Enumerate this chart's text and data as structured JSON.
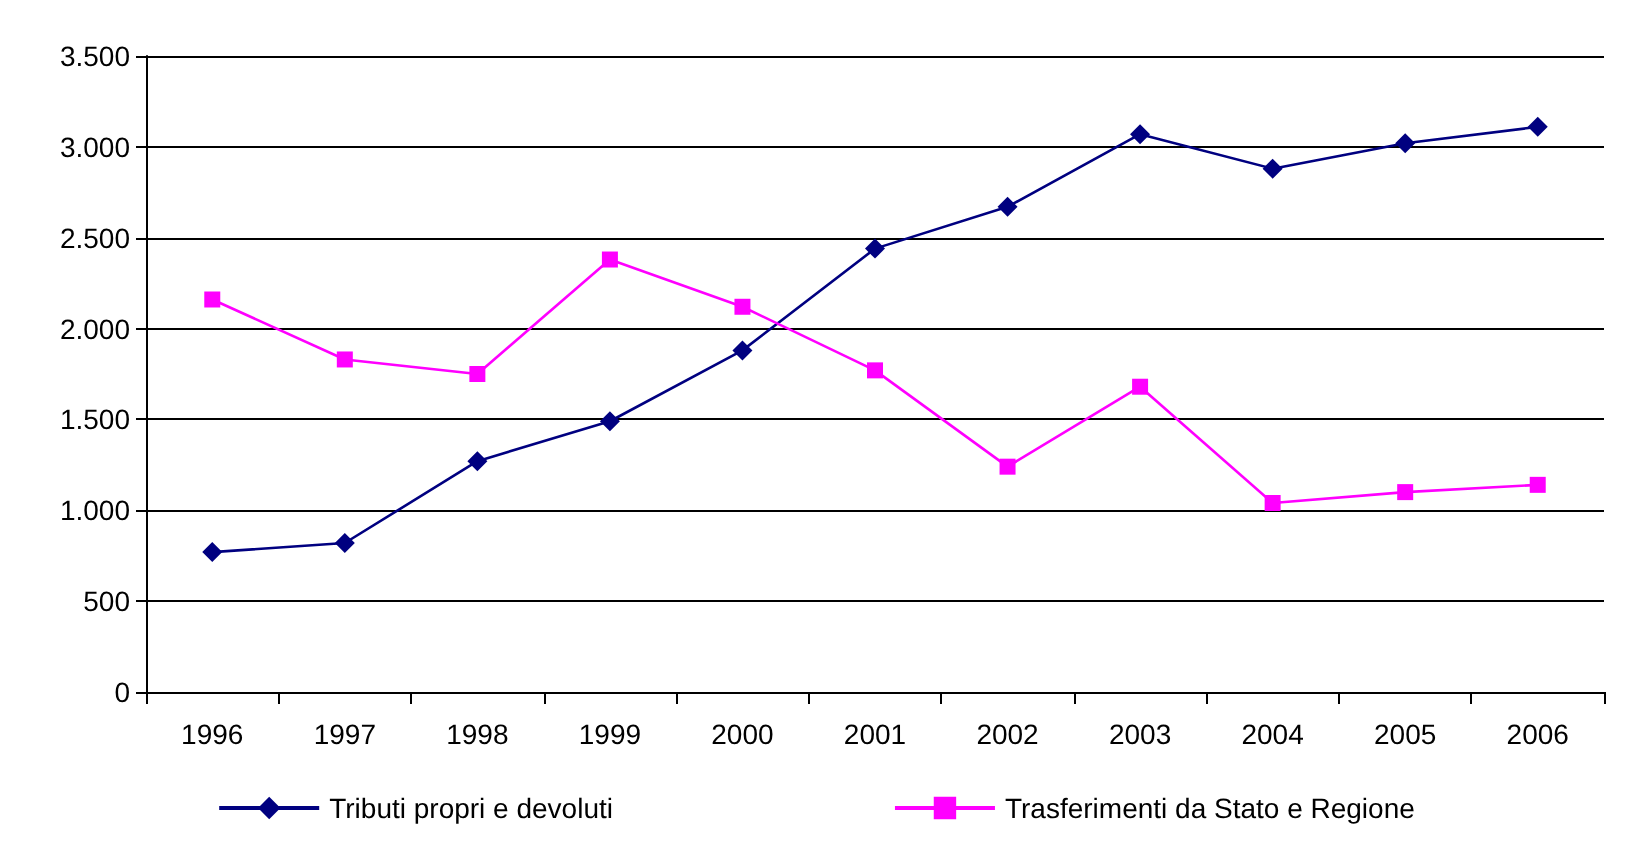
{
  "chart_data": {
    "type": "line",
    "categories": [
      "1996",
      "1997",
      "1998",
      "1999",
      "2000",
      "2001",
      "2002",
      "2003",
      "2004",
      "2005",
      "2006"
    ],
    "series": [
      {
        "name": "Tributi propri e devoluti",
        "color": "#000080",
        "marker": "diamond",
        "values": [
          770,
          820,
          1270,
          1490,
          1880,
          2440,
          2670,
          3070,
          2880,
          3020,
          3110
        ]
      },
      {
        "name": "Trasferimenti da Stato e Regione",
        "color": "#ff00ff",
        "marker": "square",
        "values": [
          2160,
          1830,
          1750,
          2380,
          2120,
          1770,
          1240,
          1680,
          1040,
          1100,
          1140
        ]
      }
    ],
    "ylim": [
      0,
      3500
    ],
    "yticks": [
      {
        "value": 0,
        "label": "0"
      },
      {
        "value": 500,
        "label": "500"
      },
      {
        "value": 1000,
        "label": "1.000"
      },
      {
        "value": 1500,
        "label": "1.500"
      },
      {
        "value": 2000,
        "label": "2.000"
      },
      {
        "value": 2500,
        "label": "2.500"
      },
      {
        "value": 3000,
        "label": "3.000"
      },
      {
        "value": 3500,
        "label": "3.500"
      }
    ],
    "grid": "y",
    "legend": "bottom"
  }
}
